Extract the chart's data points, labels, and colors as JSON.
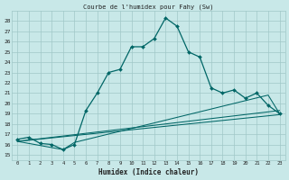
{
  "title": "Courbe de l'humidex pour Fahy (Sw)",
  "xlabel": "Humidex (Indice chaleur)",
  "bg_color": "#c8e8e8",
  "line_color": "#006666",
  "grid_color": "#a0c8c8",
  "xlim": [
    -0.5,
    23.5
  ],
  "ylim": [
    14.5,
    29
  ],
  "xticks": [
    0,
    1,
    2,
    3,
    4,
    5,
    6,
    7,
    8,
    9,
    10,
    11,
    12,
    13,
    14,
    15,
    16,
    17,
    18,
    19,
    20,
    21,
    22,
    23
  ],
  "yticks": [
    15,
    16,
    17,
    18,
    19,
    20,
    21,
    22,
    23,
    24,
    25,
    26,
    27,
    28
  ],
  "line1_x": [
    0,
    1,
    2,
    3,
    4,
    5,
    6,
    7,
    8,
    9,
    10,
    11,
    12,
    13,
    14,
    15,
    16,
    17,
    18,
    19,
    20,
    21,
    22,
    23
  ],
  "line1_y": [
    16.5,
    16.7,
    16.1,
    16.0,
    15.5,
    16.0,
    19.3,
    21.0,
    23.0,
    23.3,
    25.5,
    25.5,
    26.3,
    28.3,
    27.5,
    25.0,
    24.5,
    21.5,
    21.0,
    21.3,
    20.5,
    21.0,
    19.8,
    19.0
  ],
  "line2_x": [
    0,
    23
  ],
  "line2_y": [
    16.3,
    19.3
  ],
  "line3_x": [
    0,
    23
  ],
  "line3_y": [
    16.3,
    18.9
  ],
  "line4_x": [
    0,
    4,
    5,
    22,
    23
  ],
  "line4_y": [
    16.3,
    15.5,
    16.2,
    20.8,
    19.0
  ]
}
